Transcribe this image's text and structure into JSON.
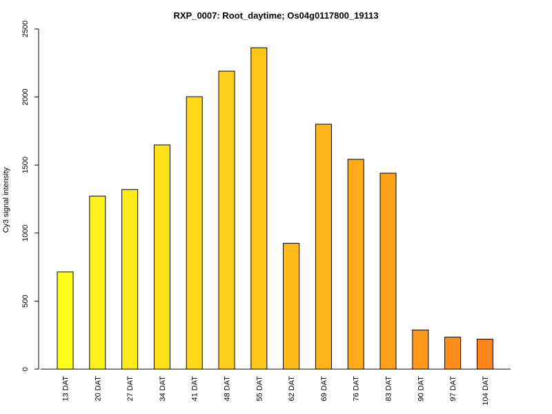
{
  "chart_data": {
    "type": "bar",
    "title": "RXP_0007: Root_daytime; Os04g0117800_19113",
    "xlabel": "",
    "ylabel": "Cy3  signal intensity",
    "ylim": [
      0,
      2500
    ],
    "yticks": [
      0,
      500,
      1000,
      1500,
      2000,
      2500
    ],
    "grid": false,
    "categories": [
      "13 DAT",
      "20 DAT",
      "27 DAT",
      "34 DAT",
      "41 DAT",
      "48 DAT",
      "55 DAT",
      "62 DAT",
      "69 DAT",
      "76 DAT",
      "83 DAT",
      "90 DAT",
      "97 DAT",
      "104 DAT"
    ],
    "values": [
      715,
      1272,
      1320,
      1648,
      2002,
      2190,
      2362,
      925,
      1800,
      1542,
      1440,
      288,
      236,
      220
    ],
    "colors": [
      "#FFFF1A",
      "#FFF21A",
      "#FFEA1A",
      "#FFE11A",
      "#FFD81A",
      "#FFCF1A",
      "#FFC51A",
      "#FFBC1A",
      "#FFB41A",
      "#FFAB1A",
      "#FFA21A",
      "#FF981A",
      "#FF8F1A",
      "#FF861A"
    ]
  }
}
